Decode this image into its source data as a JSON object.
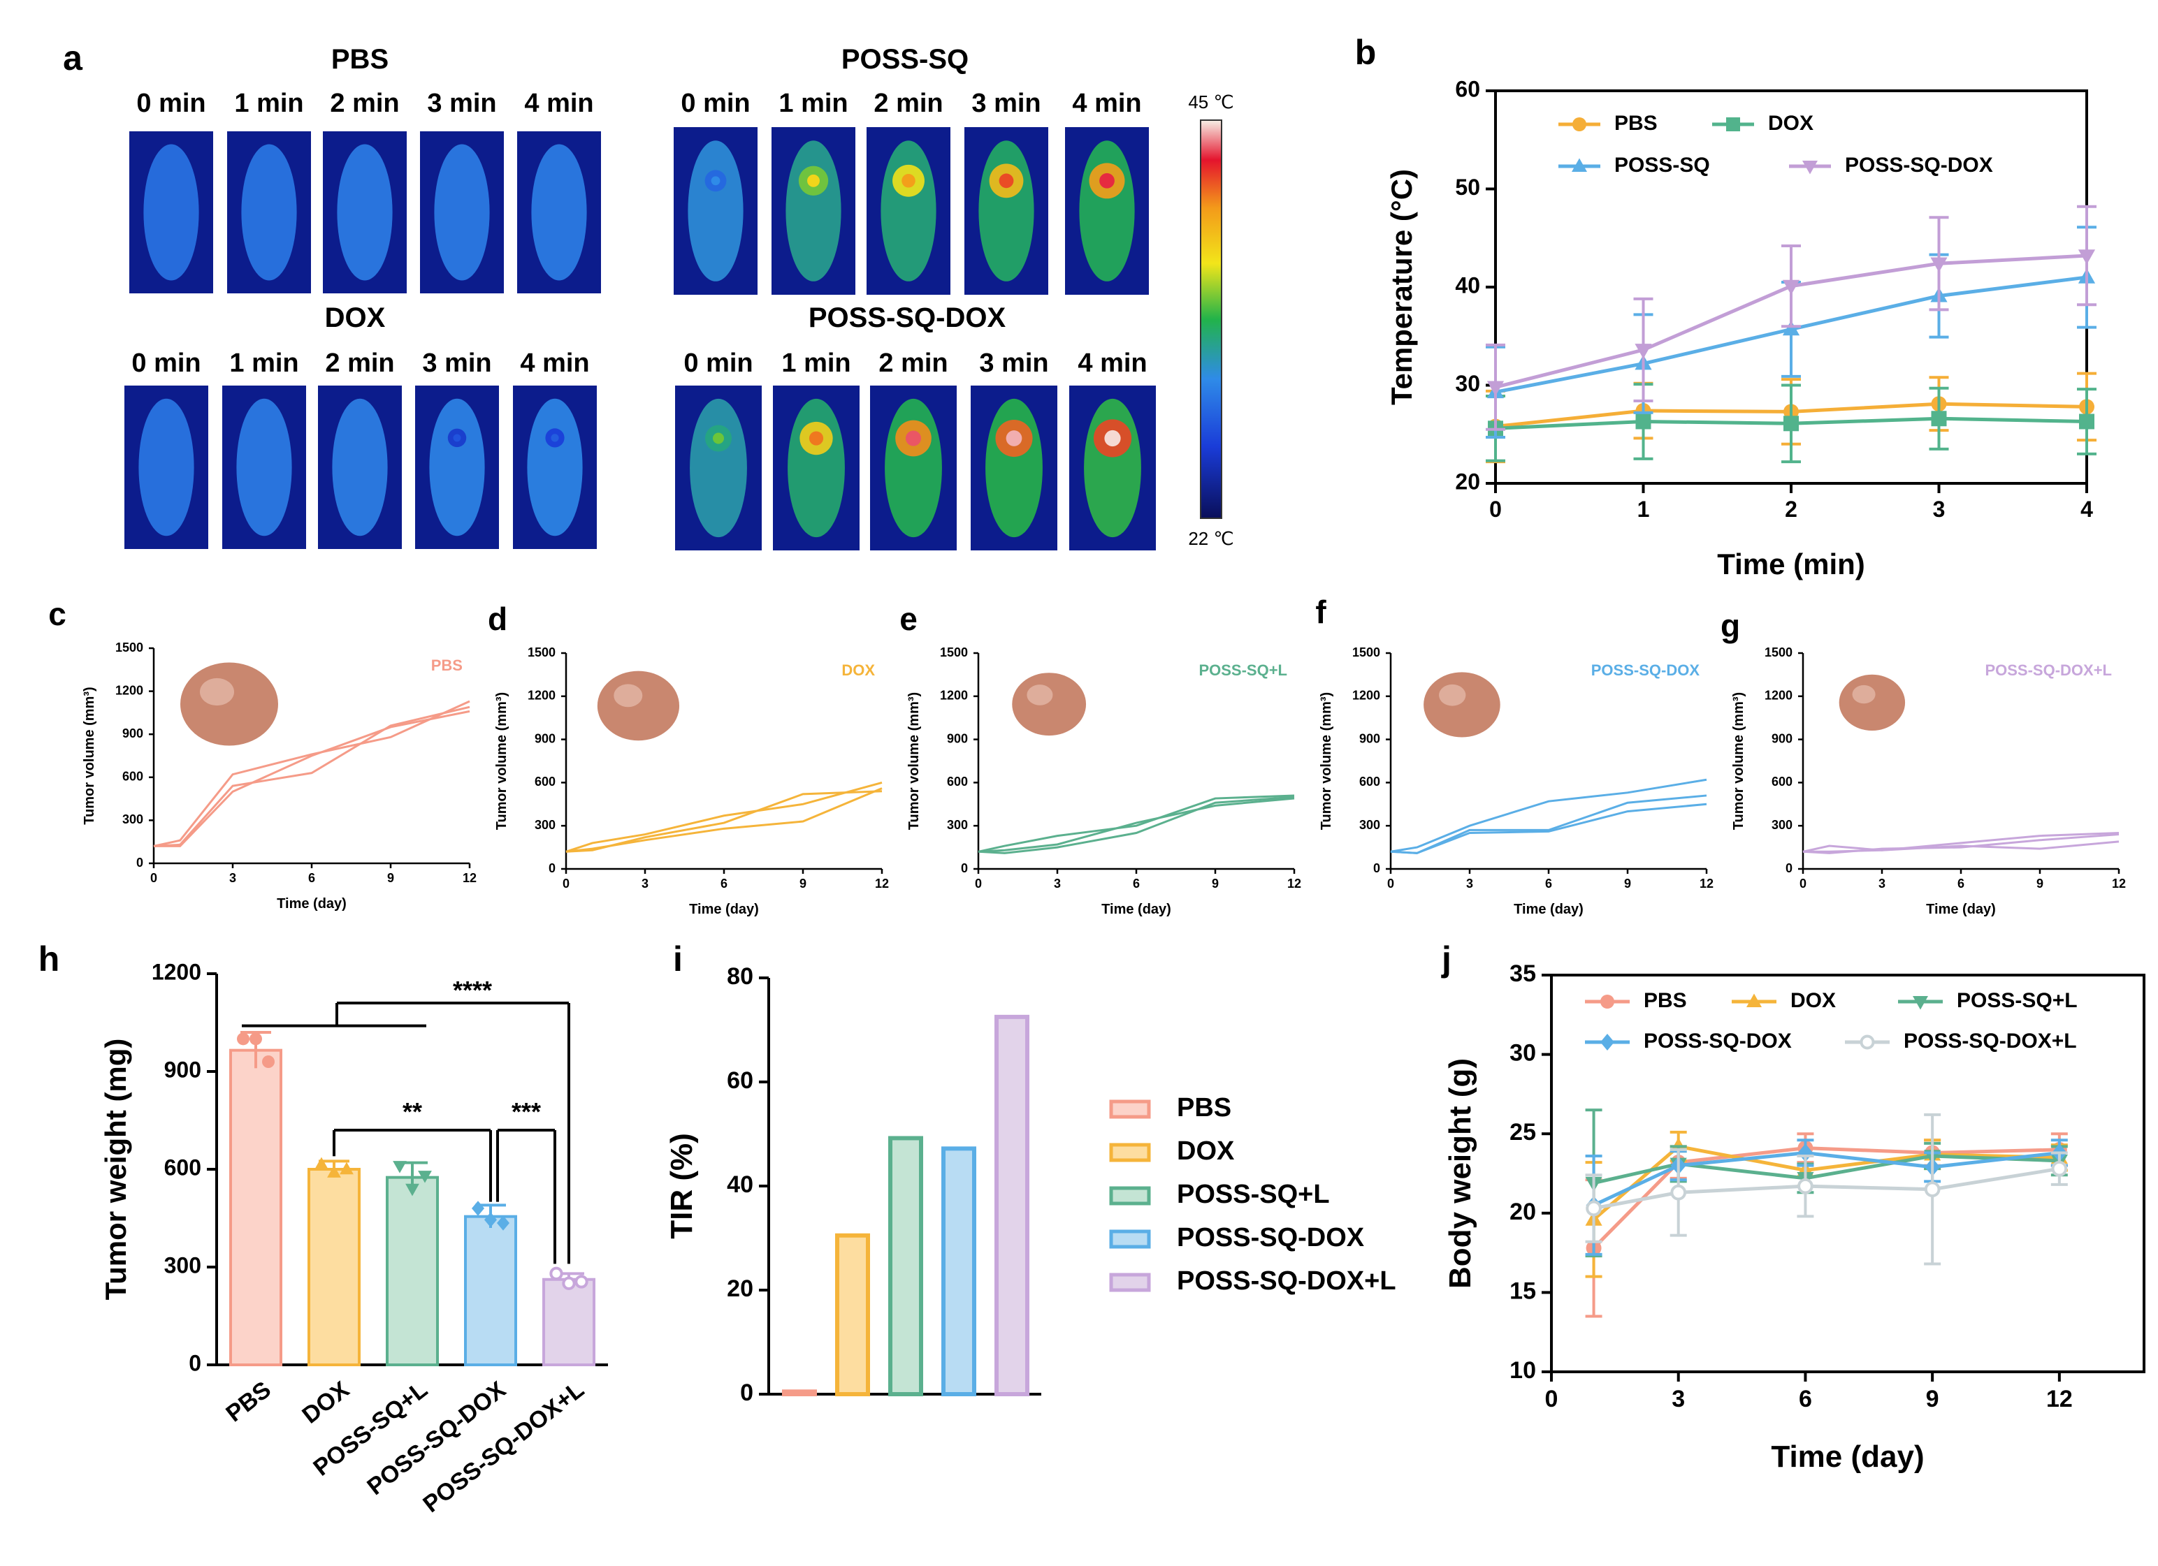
{
  "panels": {
    "a": {
      "letter": "a",
      "groups": [
        {
          "name": "PBS",
          "times": [
            "0 min",
            "1 min",
            "2 min",
            "3 min",
            "4 min"
          ],
          "hotspot": [
            0.0,
            0.05,
            0.1,
            0.1,
            0.12
          ]
        },
        {
          "name": "POSS-SQ",
          "times": [
            "0 min",
            "1 min",
            "2 min",
            "3 min",
            "4 min"
          ],
          "hotspot": [
            0.3,
            0.62,
            0.72,
            0.8,
            0.86
          ]
        },
        {
          "name": "DOX",
          "times": [
            "0 min",
            "1 min",
            "2 min",
            "3 min",
            "4 min"
          ],
          "hotspot": [
            0.05,
            0.1,
            0.14,
            0.18,
            0.2
          ]
        },
        {
          "name": "POSS-SQ-DOX",
          "times": [
            "0 min",
            "1 min",
            "2 min",
            "3 min",
            "4 min"
          ],
          "hotspot": [
            0.5,
            0.76,
            0.88,
            0.92,
            0.95
          ]
        }
      ],
      "colorbar": {
        "max_label": "45 ℃",
        "min_label": "22 ℃"
      }
    }
  },
  "chart_data": [
    {
      "id": "b",
      "panel_label": "b",
      "type": "line",
      "xlabel": "Time (min)",
      "ylabel": "Temperature (°C)",
      "xlim": [
        0,
        4
      ],
      "ylim": [
        20,
        60
      ],
      "xticks": [
        0,
        1,
        2,
        3,
        4
      ],
      "yticks": [
        20,
        30,
        40,
        50,
        60
      ],
      "grid": false,
      "legend": "top",
      "series": [
        {
          "name": "PBS",
          "color": "#f5ae37",
          "marker": "circle",
          "x": [
            0,
            1,
            2,
            3,
            4
          ],
          "y": [
            25.8,
            27.4,
            27.3,
            28.1,
            27.8
          ],
          "err": [
            3.6,
            2.8,
            3.3,
            2.7,
            3.4
          ]
        },
        {
          "name": "DOX",
          "color": "#52b38c",
          "marker": "square",
          "x": [
            0,
            1,
            2,
            3,
            4
          ],
          "y": [
            25.6,
            26.3,
            26.1,
            26.6,
            26.3
          ],
          "err": [
            3.3,
            3.8,
            3.9,
            3.1,
            3.3
          ]
        },
        {
          "name": "POSS-SQ",
          "color": "#5aaee6",
          "marker": "triangle-up",
          "x": [
            0,
            1,
            2,
            3,
            4
          ],
          "y": [
            29.3,
            32.2,
            35.7,
            39.1,
            41.0
          ],
          "err": [
            4.6,
            5.0,
            4.8,
            4.2,
            5.1
          ]
        },
        {
          "name": "POSS-SQ-DOX",
          "color": "#c29ed6",
          "marker": "triangle-down",
          "x": [
            0,
            1,
            2,
            3,
            4
          ],
          "y": [
            29.8,
            33.6,
            40.1,
            42.4,
            43.2
          ],
          "err": [
            4.3,
            5.2,
            4.1,
            4.7,
            5.0
          ]
        }
      ]
    },
    {
      "id": "c",
      "panel_label": "c",
      "type": "line",
      "tag": "PBS",
      "color": "#f59b88",
      "xlabel": "Time (day)",
      "ylabel": "Tumor volume (mm³)",
      "xlim": [
        0,
        12
      ],
      "ylim": [
        0,
        1500
      ],
      "xticks": [
        0,
        3,
        6,
        9,
        12
      ],
      "yticks": [
        0,
        300,
        600,
        900,
        1200,
        1500
      ],
      "photo_size": 1.0,
      "series": [
        {
          "x": [
            0,
            1,
            3,
            6,
            9,
            12
          ],
          "y": [
            120,
            120,
            500,
            750,
            950,
            1060
          ]
        },
        {
          "x": [
            0,
            1,
            3,
            6,
            9,
            12
          ],
          "y": [
            120,
            160,
            620,
            760,
            880,
            1130
          ]
        },
        {
          "x": [
            0,
            1,
            3,
            6,
            9,
            12
          ],
          "y": [
            120,
            130,
            540,
            630,
            960,
            1090
          ]
        }
      ]
    },
    {
      "id": "d",
      "panel_label": "d",
      "type": "line",
      "tag": "DOX",
      "color": "#f5b43a",
      "xlabel": "Time (day)",
      "ylabel": "Tumor volume (mm³)",
      "xlim": [
        0,
        12
      ],
      "ylim": [
        0,
        1500
      ],
      "xticks": [
        0,
        3,
        6,
        9,
        12
      ],
      "yticks": [
        0,
        300,
        600,
        900,
        1200,
        1500
      ],
      "photo_size": 0.7,
      "series": [
        {
          "x": [
            0,
            1,
            3,
            6,
            9,
            12
          ],
          "y": [
            120,
            180,
            240,
            370,
            450,
            600
          ]
        },
        {
          "x": [
            0,
            1,
            3,
            6,
            9,
            12
          ],
          "y": [
            120,
            130,
            220,
            320,
            520,
            540
          ]
        },
        {
          "x": [
            0,
            1,
            3,
            6,
            9,
            12
          ],
          "y": [
            120,
            140,
            200,
            280,
            330,
            560
          ]
        }
      ]
    },
    {
      "id": "e",
      "panel_label": "e",
      "type": "line",
      "tag": "POSS-SQ+L",
      "color": "#5bb08e",
      "xlabel": "Time (day)",
      "ylabel": "Tumor volume (mm³)",
      "xlim": [
        0,
        12
      ],
      "ylim": [
        0,
        1500
      ],
      "xticks": [
        0,
        3,
        6,
        9,
        12
      ],
      "yticks": [
        0,
        300,
        600,
        900,
        1200,
        1500
      ],
      "photo_size": 0.55,
      "series": [
        {
          "x": [
            0,
            1,
            3,
            6,
            9,
            12
          ],
          "y": [
            120,
            160,
            230,
            300,
            490,
            510
          ]
        },
        {
          "x": [
            0,
            1,
            3,
            6,
            9,
            12
          ],
          "y": [
            120,
            130,
            170,
            320,
            440,
            490
          ]
        },
        {
          "x": [
            0,
            1,
            3,
            6,
            9,
            12
          ],
          "y": [
            120,
            110,
            150,
            250,
            460,
            500
          ]
        }
      ]
    },
    {
      "id": "f",
      "panel_label": "f",
      "type": "line",
      "tag": "POSS-SQ-DOX",
      "color": "#5aaee6",
      "xlabel": "Time (day)",
      "ylabel": "Tumor volume (mm³)",
      "xlim": [
        0,
        12
      ],
      "ylim": [
        0,
        1500
      ],
      "xticks": [
        0,
        3,
        6,
        9,
        12
      ],
      "yticks": [
        0,
        300,
        600,
        900,
        1200,
        1500
      ],
      "photo_size": 0.6,
      "series": [
        {
          "x": [
            0,
            1,
            3,
            6,
            9,
            12
          ],
          "y": [
            120,
            150,
            300,
            470,
            530,
            620
          ]
        },
        {
          "x": [
            0,
            1,
            3,
            6,
            9,
            12
          ],
          "y": [
            120,
            110,
            270,
            270,
            460,
            510
          ]
        },
        {
          "x": [
            0,
            1,
            3,
            6,
            9,
            12
          ],
          "y": [
            120,
            110,
            250,
            260,
            400,
            450
          ]
        }
      ]
    },
    {
      "id": "g",
      "panel_label": "g",
      "type": "line",
      "tag": "POSS-SQ-DOX+L",
      "color": "#c7a6db",
      "xlabel": "Time (day)",
      "ylabel": "Tumor volume (mm³)",
      "xlim": [
        0,
        12
      ],
      "ylim": [
        0,
        1500
      ],
      "xticks": [
        0,
        3,
        6,
        9,
        12
      ],
      "yticks": [
        0,
        300,
        600,
        900,
        1200,
        1500
      ],
      "photo_size": 0.4,
      "series": [
        {
          "x": [
            0,
            1,
            3,
            6,
            9,
            12
          ],
          "y": [
            120,
            160,
            130,
            180,
            230,
            250
          ]
        },
        {
          "x": [
            0,
            1,
            3,
            6,
            9,
            12
          ],
          "y": [
            120,
            110,
            140,
            150,
            200,
            240
          ]
        },
        {
          "x": [
            0,
            1,
            3,
            6,
            9,
            12
          ],
          "y": [
            120,
            120,
            130,
            160,
            140,
            190
          ]
        }
      ]
    },
    {
      "id": "h",
      "panel_label": "h",
      "type": "bar",
      "ylabel": "Tumor weight (mg)",
      "ylim": [
        0,
        1200
      ],
      "yticks": [
        0,
        300,
        600,
        900,
        1200
      ],
      "categories": [
        "PBS",
        "DOX",
        "POSS-SQ+L",
        "POSS-SQ-DOX",
        "POSS-SQ-DOX+L"
      ],
      "values": [
        965,
        600,
        575,
        455,
        262
      ],
      "errors": [
        55,
        25,
        45,
        35,
        18
      ],
      "points": [
        [
          1000,
          1000,
          930
        ],
        [
          615,
          590,
          600
        ],
        [
          610,
          540,
          580
        ],
        [
          480,
          445,
          435
        ],
        [
          280,
          250,
          255
        ]
      ],
      "fills": [
        "#fcd3c9",
        "#fddda0",
        "#c4e4d4",
        "#b8dcf3",
        "#e2d3ea"
      ],
      "strokes": [
        "#f59b88",
        "#f5b43a",
        "#5bb08e",
        "#5aaee6",
        "#c7a6db"
      ],
      "significance": [
        {
          "label": "****",
          "from": 0,
          "to": 4,
          "y": 1110
        },
        {
          "label": "**",
          "from": 1,
          "to": 3,
          "y": 720
        },
        {
          "label": "***",
          "from": 3,
          "to": 4,
          "y": 720
        }
      ]
    },
    {
      "id": "i",
      "panel_label": "i",
      "type": "bar",
      "ylabel": "TIR (%)",
      "ylim": [
        0,
        80
      ],
      "yticks": [
        0,
        20,
        40,
        60,
        80
      ],
      "categories": [
        "PBS",
        "DOX",
        "POSS-SQ+L",
        "POSS-SQ-DOX",
        "POSS-SQ-DOX+L"
      ],
      "values": [
        0.5,
        30.5,
        49.2,
        47.2,
        72.5
      ],
      "fills": [
        "#fcd3c9",
        "#fddda0",
        "#c4e4d4",
        "#b8dcf3",
        "#e2d3ea"
      ],
      "strokes": [
        "#f59b88",
        "#f5b43a",
        "#5bb08e",
        "#5aaee6",
        "#c7a6db"
      ],
      "legend": "right"
    },
    {
      "id": "j",
      "panel_label": "j",
      "type": "line",
      "xlabel": "Time (day)",
      "ylabel": "Body weight (g)",
      "xlim": [
        0,
        14
      ],
      "ylim": [
        10,
        35
      ],
      "xticks": [
        0,
        3,
        6,
        9,
        12
      ],
      "yticks": [
        10,
        15,
        20,
        25,
        30,
        35
      ],
      "legend": "top",
      "series": [
        {
          "name": "PBS",
          "color": "#f59b88",
          "marker": "circle",
          "x": [
            1,
            3,
            6,
            9,
            12
          ],
          "y": [
            17.8,
            23.2,
            24.1,
            23.8,
            24.0
          ],
          "err": [
            4.3,
            1.0,
            0.9,
            0.8,
            1.0
          ]
        },
        {
          "name": "DOX",
          "color": "#f5b43a",
          "marker": "triangle-up",
          "x": [
            1,
            3,
            6,
            9,
            12
          ],
          "y": [
            19.6,
            24.2,
            22.7,
            23.7,
            23.5
          ],
          "err": [
            3.6,
            0.9,
            1.0,
            0.9,
            0.8
          ]
        },
        {
          "name": "POSS-SQ+L",
          "color": "#5bb08e",
          "marker": "triangle-down",
          "x": [
            1,
            3,
            6,
            9,
            12
          ],
          "y": [
            21.9,
            23.1,
            22.2,
            23.6,
            23.3
          ],
          "err": [
            4.6,
            1.1,
            0.9,
            0.8,
            0.9
          ]
        },
        {
          "name": "POSS-SQ-DOX",
          "color": "#5aaee6",
          "marker": "diamond",
          "x": [
            1,
            3,
            6,
            9,
            12
          ],
          "y": [
            20.5,
            23.0,
            23.8,
            22.9,
            23.8
          ],
          "err": [
            3.1,
            0.9,
            0.8,
            0.9,
            0.8
          ]
        },
        {
          "name": "POSS-SQ-DOX+L",
          "color": "#c8d2d6",
          "marker": "circle-open",
          "x": [
            1,
            3,
            6,
            9,
            12
          ],
          "y": [
            20.3,
            21.3,
            21.7,
            21.5,
            22.8
          ],
          "err": [
            2.1,
            2.7,
            1.9,
            4.7,
            1.0
          ]
        }
      ]
    }
  ]
}
